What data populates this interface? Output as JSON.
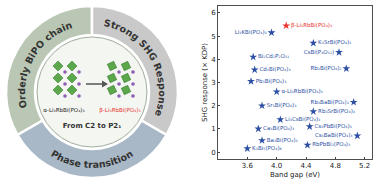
{
  "diagram": {
    "ring": [
      "Orderly BiPO chain",
      "Strong SHG Response",
      "Phase transition"
    ],
    "structures": [
      "α-Li₃RbBi(PO₄)₃",
      "β-Li₃RbBi(PO₄)₃"
    ],
    "transition": "From C2 to P2₁"
  },
  "chart_data": {
    "type": "scatter",
    "x_label": "Band gap (eV)",
    "y_label": "SHG response (× KDP)",
    "marker": "star",
    "xlim": [
      3.2,
      5.3
    ],
    "xticks": [
      3.6,
      {
        "value": 4,
        "label": "4.0"
      },
      4.4,
      4.8,
      5.2
    ],
    "ylim": [
      -0.3,
      6.3
    ],
    "yticks": [
      0,
      1,
      2,
      3,
      4,
      5,
      6
    ],
    "point_labels": [
      "β-Li₃RbBi(PO₄)₃",
      "Li₃KBi(PO₄)₃",
      "K₃SrBi(PO₄)₃",
      "CsBi(P₄O₁₂)",
      "Bi₂Cd₂P₂O₁₁",
      "Cd₃Bi(PO₄)₃",
      "Rb₃Bi(PO₄)₂",
      "Pb₃Bi(PO₄)₃",
      "α-Li₃RbBi(PO₄)₃",
      "Rb₃BaBi(PO₄)₃",
      "Sr₃Bi(PO₄)₃",
      "Rb₃SrBi(PO₄)₃",
      "Li₃CsBi(PO₄)₃",
      "Ca₃Bi(PO₄)₃",
      "Cs₃PbBi(PO₄)₃",
      "Cs₃BaBi(PO₄)₃",
      "Ba₃Bi(PO₄)₃",
      "RbPbBi₂(PO₄)₃",
      "K₃Bi₅(PO₄)₆"
    ],
    "x": [
      4.13,
      3.93,
      4.5,
      4.85,
      3.68,
      3.7,
      4.95,
      3.65,
      4.0,
      5.05,
      3.8,
      4.5,
      4.05,
      3.75,
      4.45,
      5.1,
      3.8,
      4.42,
      3.6
    ],
    "values": [
      5.45,
      5.15,
      4.7,
      4.3,
      4.1,
      3.55,
      3.6,
      3.05,
      2.6,
      2.15,
      2.0,
      1.75,
      1.4,
      1.0,
      1.1,
      0.7,
      0.5,
      0.3,
      0.15
    ],
    "colors": [
      "#e8322b",
      "#2c4fa3",
      "#2c4fa3",
      "#2c4fa3",
      "#2c4fa3",
      "#2c4fa3",
      "#2c4fa3",
      "#2c4fa3",
      "#2c4fa3",
      "#2c4fa3",
      "#2c4fa3",
      "#2c4fa3",
      "#2c4fa3",
      "#2c4fa3",
      "#2c4fa3",
      "#2c4fa3",
      "#2c4fa3",
      "#2c4fa3",
      "#2c4fa3"
    ]
  }
}
